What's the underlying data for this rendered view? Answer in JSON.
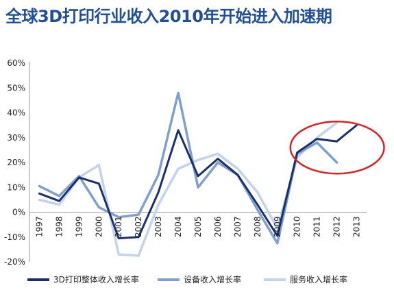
{
  "chart_data": {
    "type": "line",
    "title": "全球3D打印行业收入2010年开始进入加速期",
    "x": [
      "1997",
      "1998",
      "1999",
      "2000",
      "2001",
      "2002",
      "2003",
      "2004",
      "2005",
      "2006",
      "2007",
      "2008",
      "2009",
      "2010",
      "2011",
      "2012",
      "2013"
    ],
    "ylim": [
      -20,
      60
    ],
    "yticks": [
      -20,
      -10,
      0,
      10,
      20,
      30,
      40,
      50,
      60
    ],
    "ytick_labels": [
      "-20%",
      "-10%",
      "0%",
      "10%",
      "20%",
      "30%",
      "40%",
      "50%",
      "60%"
    ],
    "grid": false,
    "legend": "bottom",
    "series": [
      {
        "name": "3D打印整体收入增长率",
        "color": "#1a2f6e",
        "values": [
          7.5,
          4.5,
          14,
          11.5,
          -10.5,
          -10,
          8,
          33,
          14.5,
          21.5,
          15,
          3,
          -9.5,
          24,
          29.5,
          28.5,
          35
        ]
      },
      {
        "name": "设备收入增长率",
        "color": "#7e9fcf",
        "values": [
          10.5,
          6.5,
          14.5,
          2,
          -2,
          -1,
          15,
          48,
          10,
          20,
          15,
          1,
          -12.5,
          23.5,
          28,
          20,
          null
        ]
      },
      {
        "name": "服务收入增长率",
        "color": "#c3d3ec",
        "values": [
          5,
          3,
          14,
          19,
          -17,
          -17.5,
          3,
          17.5,
          21,
          23.5,
          17.5,
          8,
          -6.5,
          22,
          30,
          36,
          null
        ]
      }
    ],
    "annotation": {
      "shape": "ellipse",
      "color": "#e02020",
      "highlights": [
        "2010",
        "2011",
        "2012",
        "2013"
      ]
    }
  }
}
